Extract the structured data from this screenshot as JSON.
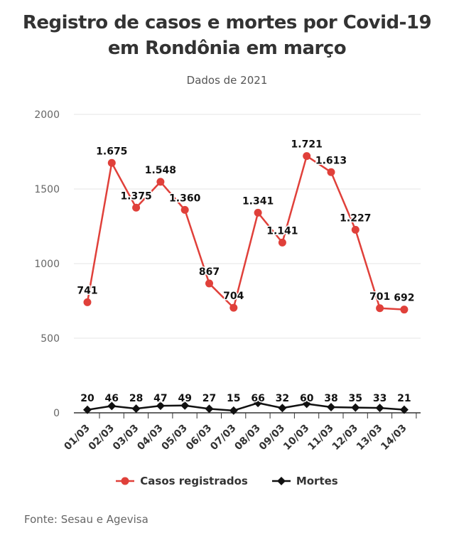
{
  "header": {
    "title_line1": "Registro de casos e mortes por Covid-19",
    "title_line2": "em Rondônia em março",
    "subtitle": "Dados de 2021"
  },
  "source": "Fonte: Sesau e Agevisa",
  "colors": {
    "cases": "#e0403a",
    "deaths": "#111111",
    "grid": "#e6e6e6",
    "axis": "#333333"
  },
  "chart_data": {
    "type": "line",
    "title": "Registro de casos e mortes por Covid-19 em Rondônia em março",
    "subtitle": "Dados de 2021",
    "categories": [
      "01/03",
      "02/03",
      "03/03",
      "04/03",
      "05/03",
      "06/03",
      "07/03",
      "08/03",
      "09/03",
      "10/03",
      "11/03",
      "12/03",
      "13/03",
      "14/03"
    ],
    "y_ticks": [
      "0",
      "500",
      "1000",
      "1500",
      "2000"
    ],
    "ylim": [
      0,
      2000
    ],
    "grid": true,
    "legend_placement": "bottom",
    "series": [
      {
        "name": "Casos registrados",
        "marker": "circle",
        "values": [
          741,
          1675,
          1375,
          1548,
          1360,
          867,
          704,
          1341,
          1141,
          1721,
          1613,
          1227,
          701,
          692
        ],
        "labels": [
          "741",
          "1.675",
          "1.375",
          "1.548",
          "1.360",
          "867",
          "704",
          "1.341",
          "1.141",
          "1.721",
          "1.613",
          "1.227",
          "701",
          "692"
        ]
      },
      {
        "name": "Mortes",
        "marker": "diamond",
        "values": [
          20,
          46,
          28,
          47,
          49,
          27,
          15,
          66,
          32,
          60,
          38,
          35,
          33,
          21
        ],
        "labels": [
          "20",
          "46",
          "28",
          "47",
          "49",
          "27",
          "15",
          "66",
          "32",
          "60",
          "38",
          "35",
          "33",
          "21"
        ]
      }
    ]
  }
}
